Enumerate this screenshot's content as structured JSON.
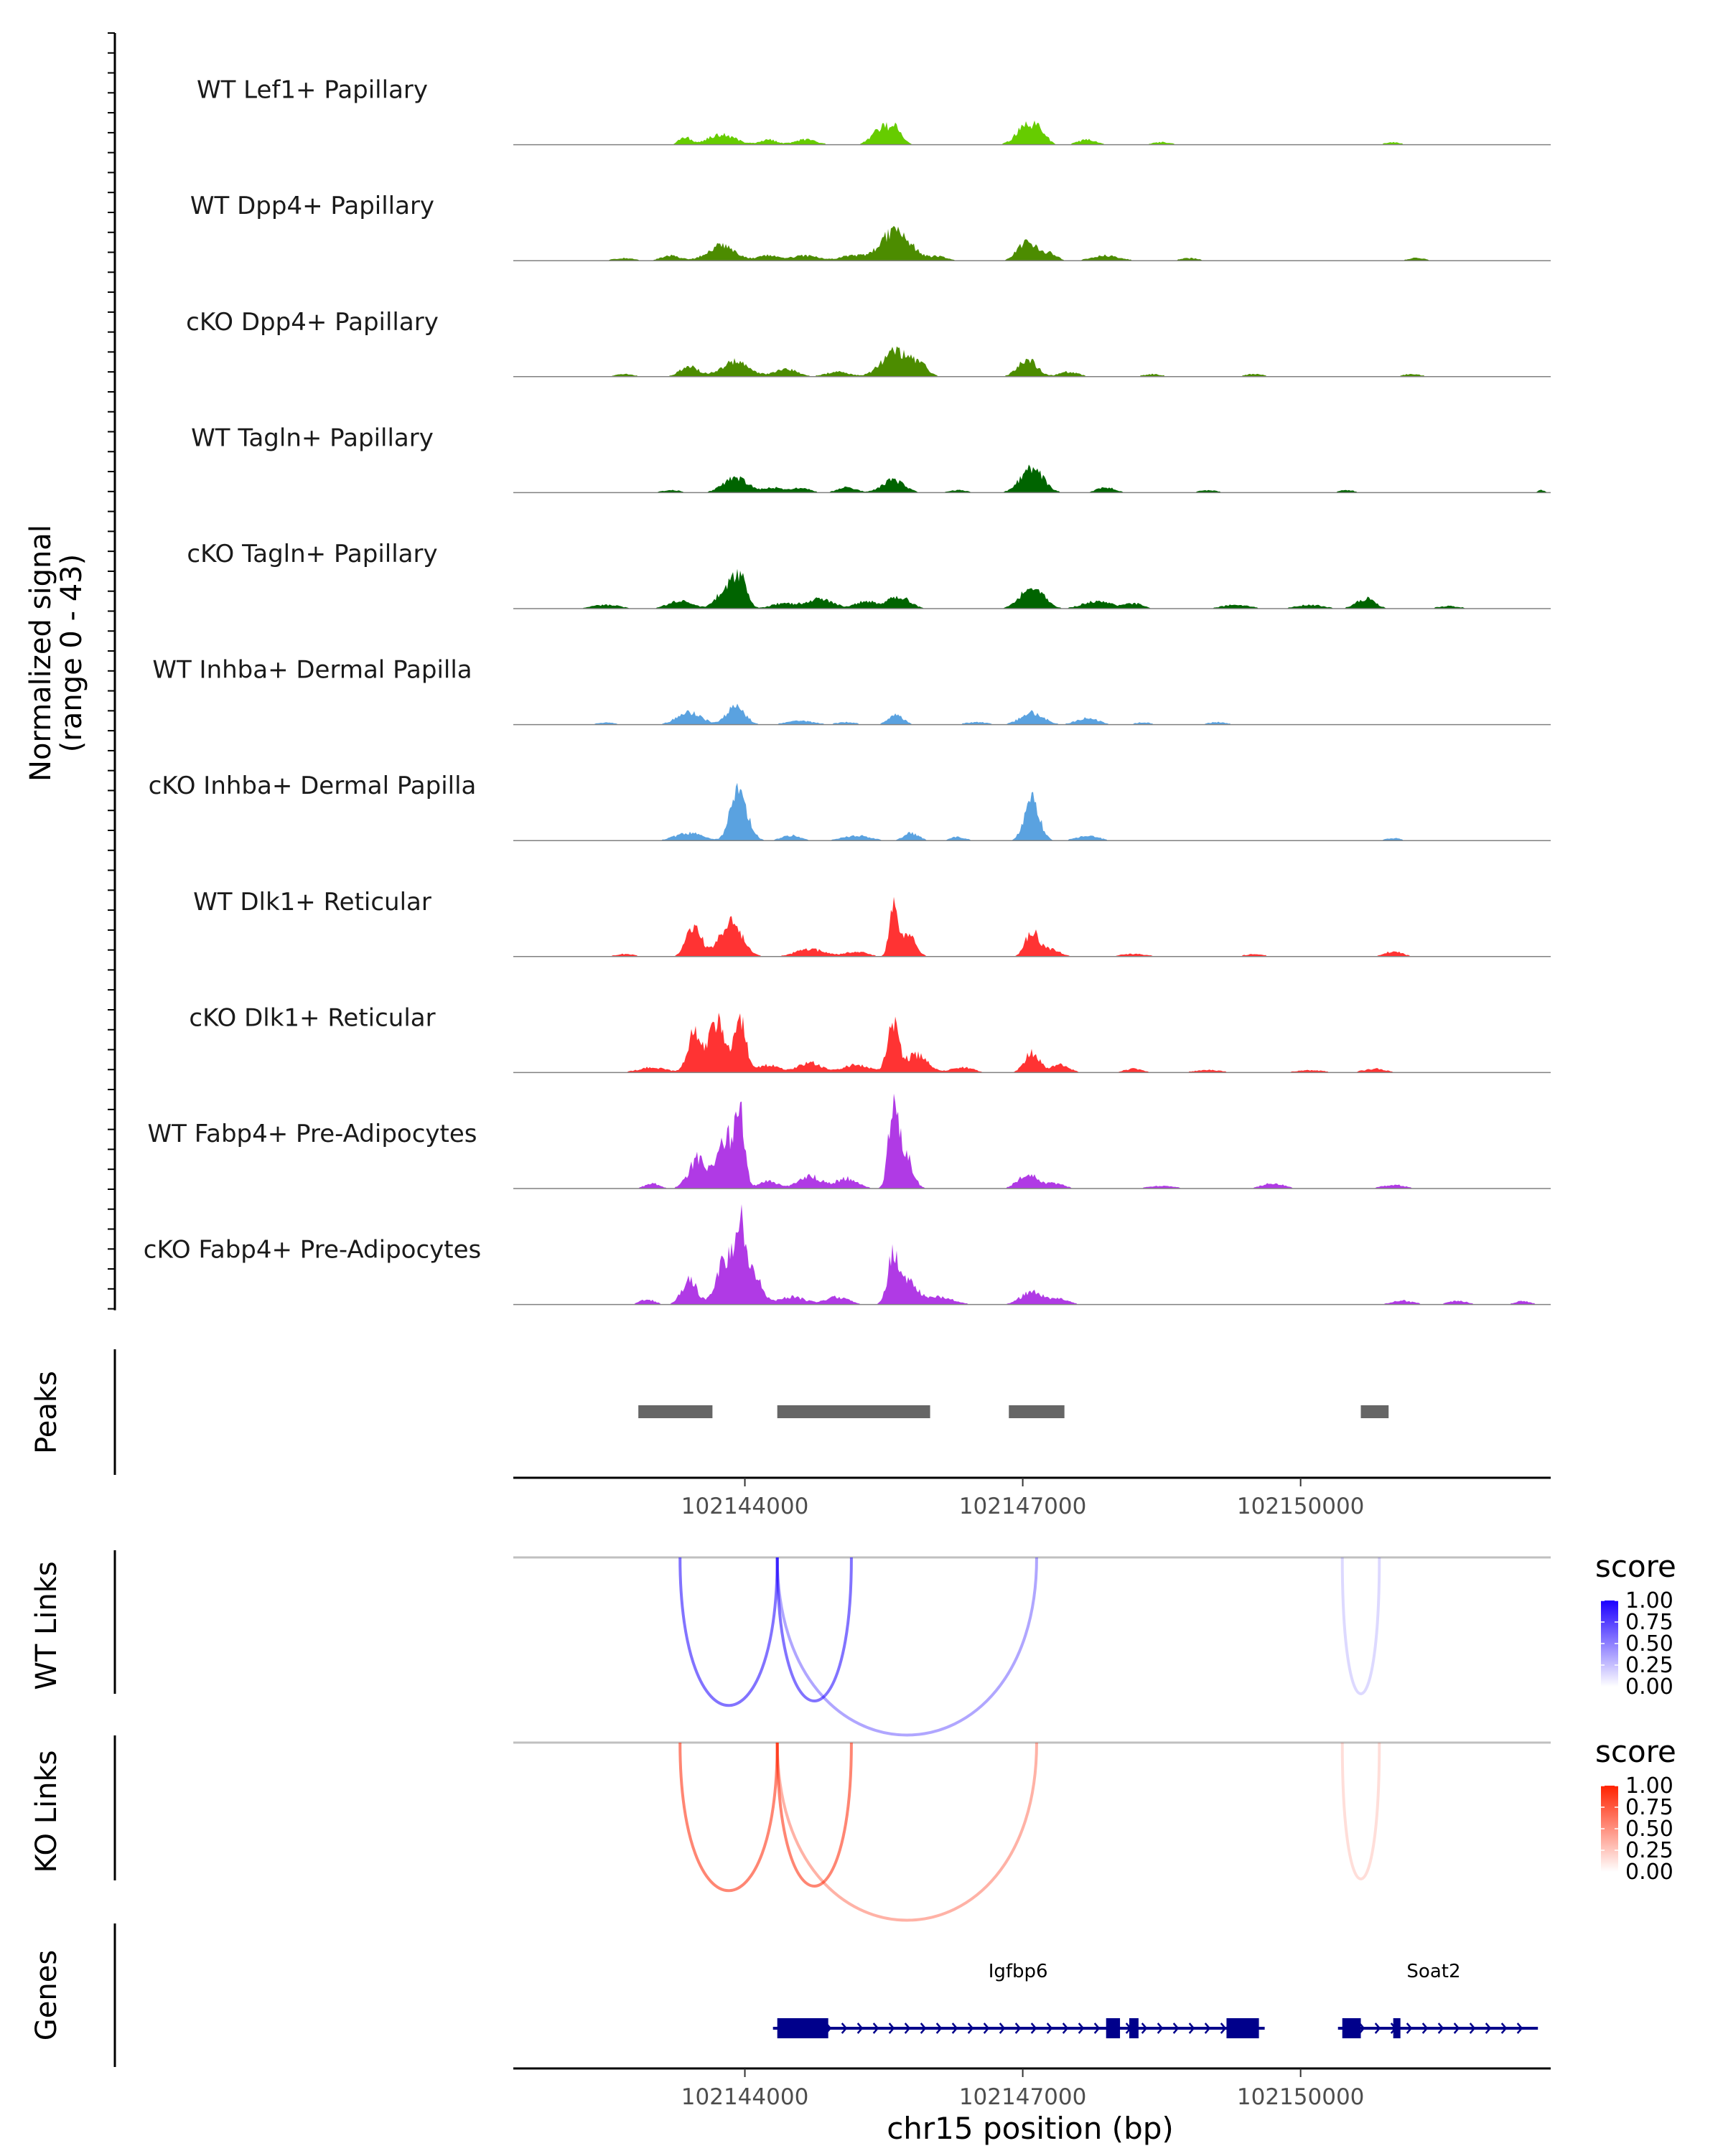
{
  "chart_data": {
    "type": "area",
    "region": "chr15:102141500-102152700",
    "coverage": {
      "ylabel": "Normalized signal",
      "ylabel_range": "(range 0 - 43)",
      "ylim": [
        0,
        43
      ],
      "tracks": [
        {
          "name": "WT Lef1+ Papillary",
          "color": "#66cc00",
          "peaks": [
            [
              102143350,
              60,
              3
            ],
            [
              102143750,
              150,
              4
            ],
            [
              102144250,
              90,
              2
            ],
            [
              102144650,
              120,
              2
            ],
            [
              102145500,
              110,
              7
            ],
            [
              102145650,
              60,
              4
            ],
            [
              102147050,
              110,
              8
            ],
            [
              102147200,
              70,
              3
            ],
            [
              102147700,
              100,
              2
            ],
            [
              102148500,
              100,
              1
            ],
            [
              102151000,
              80,
              1
            ]
          ]
        },
        {
          "name": "WT Dpp4+ Papillary",
          "color": "#4c8c00",
          "peaks": [
            [
              102142700,
              120,
              1
            ],
            [
              102143200,
              100,
              2
            ],
            [
              102143750,
              150,
              6
            ],
            [
              102144250,
              100,
              2
            ],
            [
              102144650,
              150,
              2
            ],
            [
              102145150,
              120,
              2
            ],
            [
              102145630,
              160,
              12
            ],
            [
              102146100,
              100,
              1.5
            ],
            [
              102147050,
              100,
              8
            ],
            [
              102147300,
              70,
              3
            ],
            [
              102147900,
              150,
              2
            ],
            [
              102148800,
              100,
              1
            ],
            [
              102151250,
              100,
              1
            ]
          ]
        },
        {
          "name": "cKO Dpp4+ Papillary",
          "color": "#4c8c00",
          "peaks": [
            [
              102142700,
              100,
              1
            ],
            [
              102143400,
              100,
              4
            ],
            [
              102143900,
              150,
              6
            ],
            [
              102144450,
              120,
              3
            ],
            [
              102145000,
              120,
              2
            ],
            [
              102145630,
              150,
              10
            ],
            [
              102145900,
              80,
              4
            ],
            [
              102147050,
              100,
              7
            ],
            [
              102147500,
              100,
              2
            ],
            [
              102148400,
              100,
              1
            ],
            [
              102149500,
              100,
              1
            ],
            [
              102151200,
              100,
              1
            ]
          ]
        },
        {
          "name": "WT Tagln+ Papillary",
          "color": "#006400",
          "peaks": [
            [
              102143200,
              100,
              1
            ],
            [
              102143900,
              130,
              6
            ],
            [
              102144300,
              100,
              2
            ],
            [
              102144600,
              100,
              2
            ],
            [
              102145100,
              100,
              2
            ],
            [
              102145600,
              120,
              5
            ],
            [
              102146300,
              100,
              1
            ],
            [
              102147100,
              120,
              10
            ],
            [
              102147900,
              100,
              2
            ],
            [
              102149000,
              100,
              1
            ],
            [
              102150500,
              80,
              1
            ],
            [
              102152600,
              40,
              1
            ]
          ]
        },
        {
          "name": "cKO Tagln+ Papillary",
          "color": "#006400",
          "peaks": [
            [
              102142500,
              150,
              1.5
            ],
            [
              102143300,
              130,
              3
            ],
            [
              102143800,
              100,
              8
            ],
            [
              102143950,
              70,
              11
            ],
            [
              102144400,
              120,
              2
            ],
            [
              102144800,
              150,
              4
            ],
            [
              102145300,
              100,
              3
            ],
            [
              102145650,
              120,
              5
            ],
            [
              102147100,
              120,
              9
            ],
            [
              102147800,
              150,
              3
            ],
            [
              102148200,
              100,
              2
            ],
            [
              102149300,
              150,
              1.5
            ],
            [
              102150100,
              150,
              1.5
            ],
            [
              102150700,
              100,
              4
            ],
            [
              102151600,
              120,
              1
            ]
          ]
        },
        {
          "name": "WT Inhba+ Dermal Papilla",
          "color": "#5aa2e0",
          "peaks": [
            [
              102142500,
              100,
              0.8
            ],
            [
              102143400,
              130,
              5
            ],
            [
              102143900,
              100,
              7
            ],
            [
              102144600,
              150,
              1.5
            ],
            [
              102145100,
              100,
              1
            ],
            [
              102145630,
              80,
              4
            ],
            [
              102146500,
              120,
              1
            ],
            [
              102147100,
              120,
              5
            ],
            [
              102147700,
              120,
              2.5
            ],
            [
              102148300,
              80,
              1
            ],
            [
              102149100,
              100,
              1
            ]
          ]
        },
        {
          "name": "cKO Inhba+ Dermal Papilla",
          "color": "#5aa2e0",
          "peaks": [
            [
              102143400,
              150,
              3
            ],
            [
              102143900,
              70,
              16
            ],
            [
              102144000,
              80,
              8
            ],
            [
              102144500,
              100,
              2
            ],
            [
              102145200,
              150,
              2
            ],
            [
              102145800,
              80,
              3
            ],
            [
              102146300,
              80,
              1.5
            ],
            [
              102147100,
              80,
              16
            ],
            [
              102147700,
              120,
              2
            ],
            [
              102151000,
              80,
              1
            ]
          ]
        },
        {
          "name": "WT Dlk1+ Reticular",
          "color": "#ff3333",
          "peaks": [
            [
              102142700,
              100,
              1
            ],
            [
              102143450,
              80,
              12
            ],
            [
              102143850,
              120,
              14
            ],
            [
              102144700,
              150,
              3
            ],
            [
              102145200,
              120,
              2
            ],
            [
              102145600,
              40,
              20
            ],
            [
              102145750,
              80,
              10
            ],
            [
              102147100,
              70,
              10
            ],
            [
              102147300,
              100,
              3
            ],
            [
              102148200,
              150,
              1
            ],
            [
              102149500,
              100,
              1
            ],
            [
              102151000,
              100,
              2
            ]
          ]
        },
        {
          "name": "cKO Dlk1+ Reticular",
          "color": "#ff3333",
          "peaks": [
            [
              102143000,
              150,
              2
            ],
            [
              102143450,
              70,
              15
            ],
            [
              102143700,
              90,
              20
            ],
            [
              102143950,
              60,
              22
            ],
            [
              102144250,
              120,
              3
            ],
            [
              102144700,
              120,
              4
            ],
            [
              102145200,
              150,
              3
            ],
            [
              102145600,
              60,
              18
            ],
            [
              102145850,
              120,
              7
            ],
            [
              102146350,
              120,
              2
            ],
            [
              102147100,
              80,
              8
            ],
            [
              102147400,
              100,
              3
            ],
            [
              102148200,
              100,
              1.5
            ],
            [
              102149000,
              150,
              1
            ],
            [
              102150100,
              150,
              1
            ],
            [
              102150800,
              120,
              1.5
            ]
          ]
        },
        {
          "name": "WT Fabp4+ Pre-Adipocytes",
          "color": "#b03ae5",
          "peaks": [
            [
              102143000,
              80,
              2
            ],
            [
              102143500,
              100,
              12
            ],
            [
              102143800,
              90,
              20
            ],
            [
              102143950,
              50,
              28
            ],
            [
              102144250,
              100,
              3
            ],
            [
              102144700,
              120,
              5
            ],
            [
              102145100,
              120,
              4
            ],
            [
              102145600,
              50,
              30
            ],
            [
              102145720,
              80,
              15
            ],
            [
              102147050,
              100,
              6
            ],
            [
              102147350,
              100,
              2
            ],
            [
              102148500,
              150,
              1
            ],
            [
              102149700,
              120,
              2
            ],
            [
              102151000,
              120,
              1.5
            ]
          ]
        },
        {
          "name": "cKO Fabp4+ Pre-Adipocytes",
          "color": "#b03ae5",
          "peaks": [
            [
              102142950,
              80,
              2
            ],
            [
              102143400,
              80,
              10
            ],
            [
              102143800,
              100,
              18
            ],
            [
              102143950,
              50,
              26
            ],
            [
              102144100,
              80,
              12
            ],
            [
              102144500,
              150,
              3
            ],
            [
              102145000,
              120,
              3
            ],
            [
              102145600,
              60,
              17
            ],
            [
              102145750,
              100,
              10
            ],
            [
              102146100,
              150,
              3
            ],
            [
              102147100,
              120,
              5
            ],
            [
              102147400,
              100,
              2
            ],
            [
              102151100,
              120,
              1.5
            ],
            [
              102151700,
              100,
              1.5
            ],
            [
              102152400,
              80,
              1.5
            ]
          ]
        }
      ]
    },
    "peaks_track": {
      "label": "Peaks",
      "regions": [
        [
          102142850,
          102143650
        ],
        [
          102144350,
          102146000
        ],
        [
          102146850,
          102147450
        ],
        [
          102150650,
          102150950
        ]
      ]
    },
    "axis": {
      "ticks": [
        102144000,
        102147000,
        102150000
      ],
      "tick_labels": [
        "102144000",
        "102147000",
        "102150000"
      ]
    },
    "links": [
      {
        "label": "WT Links",
        "legend_title": "score",
        "color": "#1c00ff",
        "legend_ticks": [
          "1.00",
          "0.75",
          "0.50",
          "0.25",
          "0.00"
        ],
        "arcs": [
          {
            "start": 102143300,
            "end": 102144350,
            "score": 0.55
          },
          {
            "start": 102144350,
            "end": 102145150,
            "score": 0.55
          },
          {
            "start": 102144350,
            "end": 102147150,
            "score": 0.35
          },
          {
            "start": 102150450,
            "end": 102150850,
            "score": 0.15
          }
        ]
      },
      {
        "label": "KO Links",
        "legend_title": "score",
        "color": "#ff2200",
        "legend_ticks": [
          "1.00",
          "0.75",
          "0.50",
          "0.25",
          "0.00"
        ],
        "arcs": [
          {
            "start": 102143300,
            "end": 102144350,
            "score": 0.55
          },
          {
            "start": 102144350,
            "end": 102145150,
            "score": 0.55
          },
          {
            "start": 102144350,
            "end": 102147150,
            "score": 0.35
          },
          {
            "start": 102150450,
            "end": 102150850,
            "score": 0.15
          }
        ]
      }
    ],
    "genes": {
      "label": "Genes",
      "items": [
        {
          "name": "Igfbp6",
          "start": 102144350,
          "end": 102149550,
          "exons": [
            [
              102144350,
              102144900
            ],
            [
              102147900,
              102148050
            ],
            [
              102148150,
              102148250
            ],
            [
              102149200,
              102149550
            ]
          ]
        },
        {
          "name": "Soat2",
          "start": 102150450,
          "end": 102152500,
          "exons": [
            [
              102150450,
              102150650
            ],
            [
              102151000,
              102151050
            ]
          ]
        }
      ]
    },
    "xlabel": "chr15 position (bp)"
  }
}
